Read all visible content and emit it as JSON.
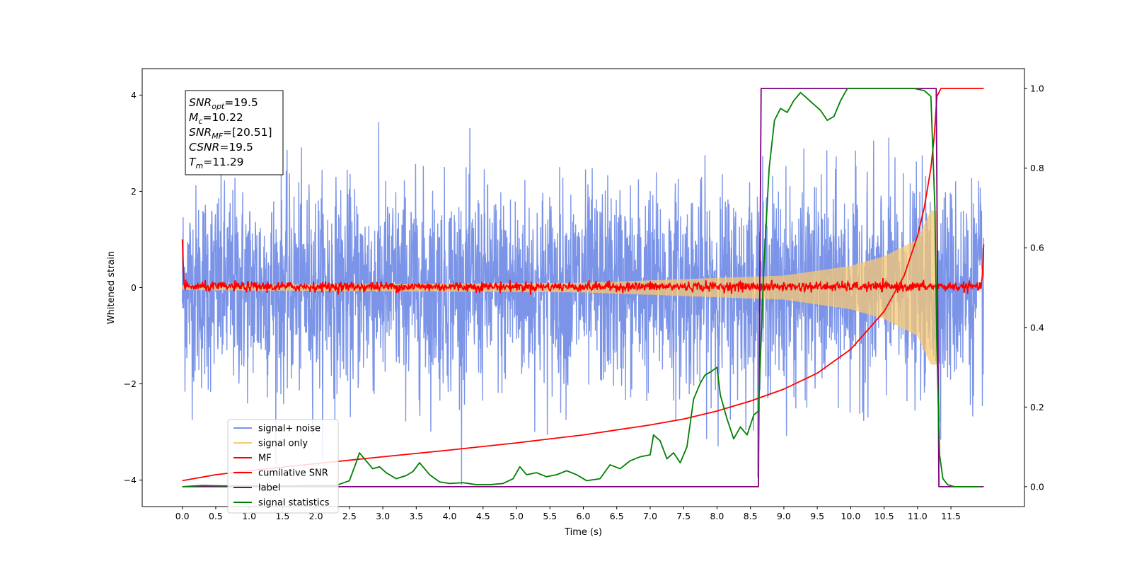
{
  "chart_data": {
    "type": "line",
    "xlabel": "Time (s)",
    "ylabel": "Whitened strain",
    "xlim": [
      -0.6,
      12.6
    ],
    "ylim": [
      -4.55,
      4.55
    ],
    "y2lim": [
      -0.05,
      1.05
    ],
    "x_ticks": [
      0.0,
      0.5,
      1.0,
      1.5,
      2.0,
      2.5,
      3.0,
      3.5,
      4.0,
      4.5,
      5.0,
      5.5,
      6.0,
      6.5,
      7.0,
      7.5,
      8.0,
      8.5,
      9.0,
      9.5,
      10.0,
      10.5,
      11.0,
      11.5
    ],
    "x_tick_labels": [
      "0.0",
      "0.5",
      "1.0",
      "1.5",
      "2.0",
      "2.5",
      "3.0",
      "3.5",
      "4.0",
      "4.5",
      "5.0",
      "5.5",
      "6.0",
      "6.5",
      "7.0",
      "7.5",
      "8.0",
      "8.5",
      "9.0",
      "9.5",
      "10.0",
      "10.5",
      "11.0",
      "11.5"
    ],
    "y_ticks": [
      -4,
      -2,
      0,
      2,
      4
    ],
    "y_tick_labels": [
      "−4",
      "−2",
      "0",
      "2",
      "4"
    ],
    "y2_ticks": [
      0.0,
      0.2,
      0.4,
      0.6,
      0.8,
      1.0
    ],
    "y2_tick_labels": [
      "0.0",
      "0.2",
      "0.4",
      "0.6",
      "0.8",
      "1.0"
    ],
    "grid": false,
    "legend_position": "lower-left",
    "annotation": {
      "lines": [
        {
          "base": "SNR",
          "sub": "opt",
          "value": "=19.5"
        },
        {
          "base": "M",
          "sub": "c",
          "value": "=10.22"
        },
        {
          "base": "SNR",
          "sub": "MF",
          "value": "=[20.51]"
        },
        {
          "base": "CSNR",
          "sub": "",
          "value": "=19.5"
        },
        {
          "base": "T",
          "sub": "m",
          "value": "=11.29"
        }
      ]
    },
    "series": [
      {
        "name": "signal+ noise",
        "axis": "left",
        "color": "#7b94e8",
        "kind": "noise",
        "x_range": [
          0.0,
          11.99
        ],
        "std": 1.05,
        "max_abs": 4.1
      },
      {
        "name": "signal only",
        "axis": "left",
        "color": "#f7c873",
        "kind": "chirp",
        "x_range": [
          0.0,
          11.29
        ],
        "envelope": [
          [
            0.0,
            0.05
          ],
          [
            6.0,
            0.1
          ],
          [
            9.0,
            0.25
          ],
          [
            10.0,
            0.45
          ],
          [
            10.5,
            0.65
          ],
          [
            11.0,
            1.0
          ],
          [
            11.2,
            1.6
          ],
          [
            11.29,
            1.6
          ]
        ]
      },
      {
        "name": "MF",
        "axis": "left",
        "color": "#ff0000",
        "kind": "mf",
        "x_range": [
          0.0,
          11.99
        ],
        "center": 0.02,
        "noise_std": 0.05,
        "edges": [
          [
            0.0,
            1.0
          ],
          [
            11.99,
            0.9
          ]
        ]
      },
      {
        "name": "cumilative SNR",
        "axis": "right",
        "color": "#ff0000",
        "kind": "line",
        "x": [
          0.0,
          0.5,
          1.0,
          2.0,
          3.0,
          4.0,
          5.0,
          6.0,
          7.0,
          7.5,
          8.0,
          8.5,
          9.0,
          9.5,
          10.0,
          10.5,
          10.8,
          11.0,
          11.1,
          11.2,
          11.25,
          11.29,
          11.35,
          11.99
        ],
        "y": [
          0.015,
          0.03,
          0.04,
          0.058,
          0.075,
          0.092,
          0.11,
          0.13,
          0.155,
          0.17,
          0.19,
          0.215,
          0.245,
          0.285,
          0.345,
          0.44,
          0.53,
          0.63,
          0.7,
          0.8,
          0.88,
          0.98,
          1.0,
          1.0
        ]
      },
      {
        "name": "label",
        "axis": "right",
        "color": "#800080",
        "kind": "step",
        "x": [
          0.0,
          8.62,
          8.66,
          11.28,
          11.32,
          11.99
        ],
        "y": [
          0.0,
          0.0,
          1.0,
          1.0,
          0.0,
          0.0
        ]
      },
      {
        "name": "signal statistics",
        "axis": "right",
        "color": "#008000",
        "kind": "line",
        "x": [
          0.0,
          0.3,
          0.6,
          1.0,
          1.5,
          2.0,
          2.3,
          2.5,
          2.6,
          2.65,
          2.75,
          2.85,
          2.95,
          3.05,
          3.2,
          3.35,
          3.45,
          3.55,
          3.7,
          3.85,
          4.0,
          4.2,
          4.4,
          4.6,
          4.8,
          4.95,
          5.05,
          5.15,
          5.3,
          5.45,
          5.6,
          5.75,
          5.9,
          6.05,
          6.25,
          6.4,
          6.55,
          6.7,
          6.85,
          7.0,
          7.05,
          7.15,
          7.25,
          7.35,
          7.45,
          7.55,
          7.65,
          7.75,
          7.82,
          7.92,
          8.0,
          8.05,
          8.15,
          8.25,
          8.35,
          8.45,
          8.55,
          8.62,
          8.7,
          8.78,
          8.86,
          8.95,
          9.05,
          9.15,
          9.25,
          9.35,
          9.45,
          9.55,
          9.65,
          9.75,
          9.85,
          9.95,
          10.05,
          10.2,
          10.4,
          10.6,
          10.8,
          10.95,
          11.1,
          11.2,
          11.26,
          11.29,
          11.33,
          11.38,
          11.45,
          11.55,
          11.7,
          11.85,
          11.94
        ],
        "y": [
          0.0,
          0.003,
          0.002,
          0.002,
          0.002,
          0.003,
          0.003,
          0.015,
          0.06,
          0.085,
          0.065,
          0.045,
          0.05,
          0.035,
          0.02,
          0.028,
          0.038,
          0.06,
          0.03,
          0.012,
          0.008,
          0.01,
          0.005,
          0.005,
          0.008,
          0.02,
          0.05,
          0.03,
          0.035,
          0.025,
          0.03,
          0.04,
          0.03,
          0.015,
          0.02,
          0.055,
          0.045,
          0.065,
          0.075,
          0.08,
          0.13,
          0.115,
          0.07,
          0.085,
          0.06,
          0.1,
          0.22,
          0.26,
          0.28,
          0.29,
          0.3,
          0.23,
          0.17,
          0.12,
          0.15,
          0.13,
          0.18,
          0.19,
          0.55,
          0.8,
          0.92,
          0.95,
          0.94,
          0.97,
          0.99,
          0.975,
          0.96,
          0.945,
          0.92,
          0.93,
          0.97,
          1.0,
          1.0,
          1.0,
          1.0,
          1.0,
          1.0,
          1.0,
          0.995,
          0.98,
          0.7,
          0.35,
          0.08,
          0.02,
          0.005,
          0.0,
          0.0,
          0.0,
          0.0
        ]
      }
    ]
  }
}
